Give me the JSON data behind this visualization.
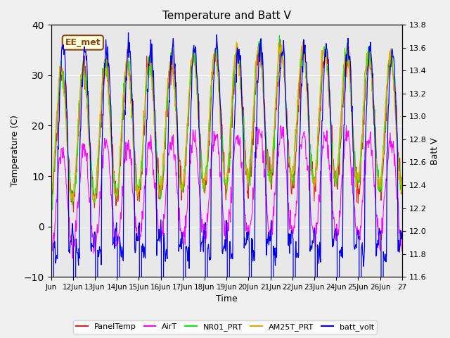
{
  "title": "Temperature and Batt V",
  "xlabel": "Time",
  "ylabel_left": "Temperature (C)",
  "ylabel_right": "Batt V",
  "ylim_left": [
    -10,
    40
  ],
  "ylim_right": [
    11.6,
    13.8
  ],
  "annotation": "EE_met",
  "x_tick_labels": [
    "Jun",
    "12Jun",
    "13Jun",
    "14Jun",
    "15Jun",
    "16Jun",
    "17Jun",
    "18Jun",
    "19Jun",
    "20Jun",
    "21Jun",
    "22Jun",
    "23Jun",
    "24Jun",
    "25Jun",
    "26Jun",
    "27"
  ],
  "legend": [
    {
      "label": "PanelTemp",
      "color": "#dd2222"
    },
    {
      "label": "AirT",
      "color": "#ff00ff"
    },
    {
      "label": "NR01_PRT",
      "color": "#00ee00"
    },
    {
      "label": "AM25T_PRT",
      "color": "#ddaa00"
    },
    {
      "label": "batt_volt",
      "color": "#0000ee"
    }
  ],
  "bg_color": "#e8e8e8",
  "grid_color": "#ffffff",
  "n_days": 16,
  "pts_per_day": 48
}
